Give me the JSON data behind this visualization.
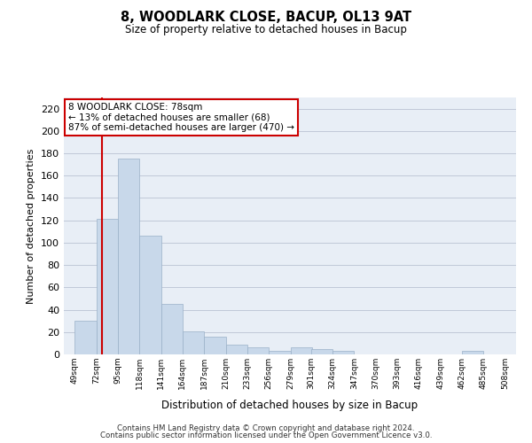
{
  "title": "8, WOODLARK CLOSE, BACUP, OL13 9AT",
  "subtitle": "Size of property relative to detached houses in Bacup",
  "xlabel": "Distribution of detached houses by size in Bacup",
  "ylabel": "Number of detached properties",
  "bar_color": "#c8d8ea",
  "bar_edge_color": "#9ab0c8",
  "grid_color": "#c0c8d8",
  "background_color": "#e8eef6",
  "marker_line_color": "#cc0000",
  "marker_value": 78,
  "annotation_text": "8 WOODLARK CLOSE: 78sqm\n← 13% of detached houses are smaller (68)\n87% of semi-detached houses are larger (470) →",
  "footer_line1": "Contains HM Land Registry data © Crown copyright and database right 2024.",
  "footer_line2": "Contains public sector information licensed under the Open Government Licence v3.0.",
  "bin_edges": [
    49,
    72,
    95,
    118,
    141,
    164,
    187,
    210,
    233,
    256,
    279,
    301,
    324,
    347,
    370,
    393,
    416,
    439,
    462,
    485,
    508
  ],
  "bin_labels": [
    "49sqm",
    "72sqm",
    "95sqm",
    "118sqm",
    "141sqm",
    "164sqm",
    "187sqm",
    "210sqm",
    "233sqm",
    "256sqm",
    "279sqm",
    "301sqm",
    "324sqm",
    "347sqm",
    "370sqm",
    "393sqm",
    "416sqm",
    "439sqm",
    "462sqm",
    "485sqm",
    "508sqm"
  ],
  "counts": [
    30,
    121,
    175,
    106,
    45,
    21,
    16,
    9,
    6,
    3,
    6,
    5,
    3,
    0,
    0,
    0,
    0,
    0,
    3,
    0,
    0
  ],
  "ylim": [
    0,
    230
  ],
  "yticks": [
    0,
    20,
    40,
    60,
    80,
    100,
    120,
    140,
    160,
    180,
    200,
    220
  ],
  "figsize": [
    6.0,
    5.0
  ],
  "dpi": 100
}
